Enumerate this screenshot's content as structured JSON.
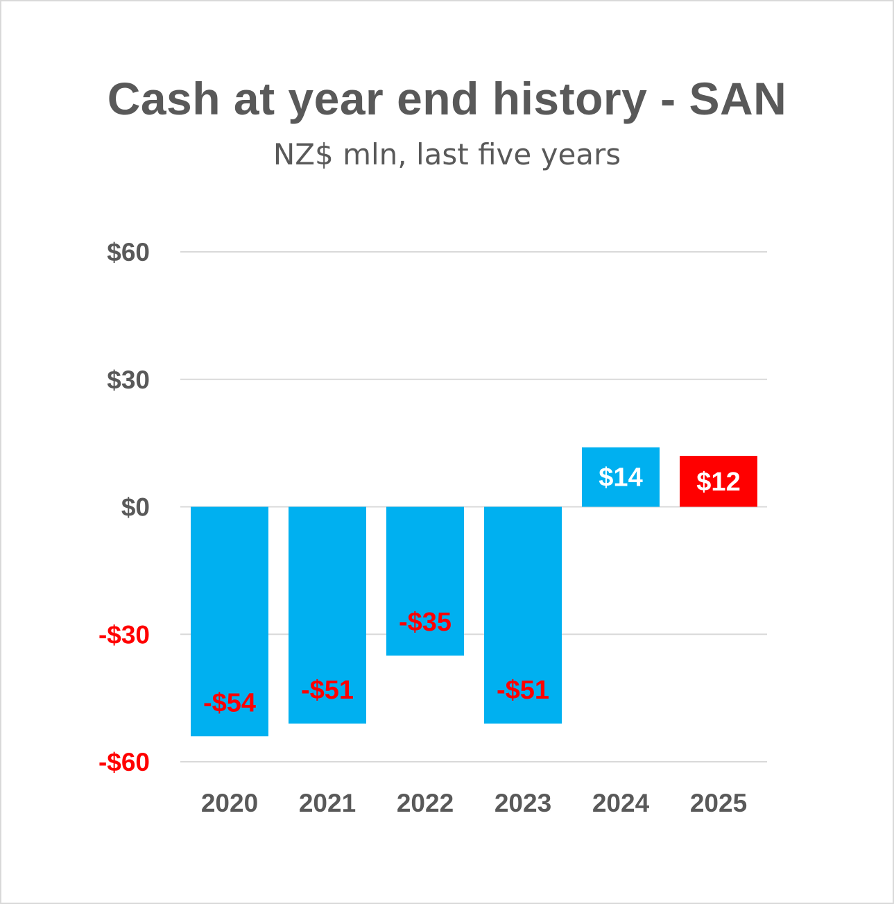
{
  "chart_data": {
    "type": "bar",
    "title": "Cash at year end history - SAN",
    "subtitle": "NZ$ mln, last five years",
    "categories": [
      "2020",
      "2021",
      "2022",
      "2023",
      "2024",
      "2025"
    ],
    "values": [
      -54,
      -51,
      -35,
      -51,
      14,
      12
    ],
    "data_labels": [
      "-$54",
      "-$51",
      "-$35",
      "-$51",
      "$14",
      "$12"
    ],
    "bar_colors": [
      "#00b0f0",
      "#00b0f0",
      "#00b0f0",
      "#00b0f0",
      "#00b0f0",
      "#ff0000"
    ],
    "label_colors": [
      "#ff0000",
      "#ff0000",
      "#ff0000",
      "#ff0000",
      "#ffffff",
      "#ffffff"
    ],
    "ylim": [
      -60,
      60
    ],
    "yticks": [
      60,
      30,
      0,
      -30,
      -60
    ],
    "ytick_labels": [
      "$60",
      "$30",
      "$0",
      "-$30",
      "-$60"
    ],
    "ytick_colors": [
      "#595959",
      "#595959",
      "#595959",
      "#ff0000",
      "#ff0000"
    ],
    "grid": true,
    "legend": "none"
  }
}
